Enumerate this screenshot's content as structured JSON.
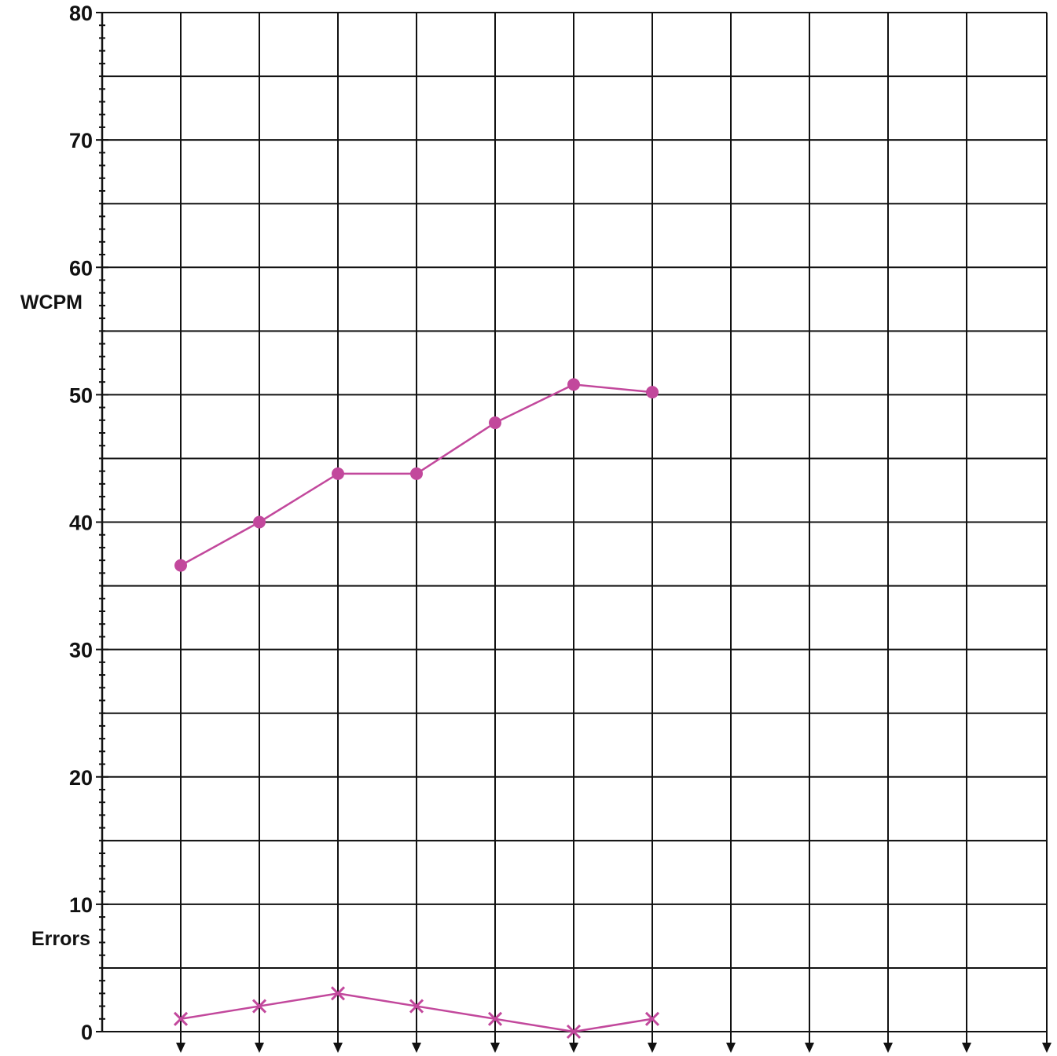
{
  "chart_data": {
    "type": "line",
    "title": "",
    "xlabel": "",
    "ylabel": "WCPM",
    "secondary_label": "Errors",
    "ylim": [
      0,
      80
    ],
    "yticks": [
      "0",
      "10",
      "20",
      "30",
      "40",
      "50",
      "60",
      "70",
      "80"
    ],
    "x_columns": 12,
    "grid": true,
    "series": [
      {
        "name": "WCPM",
        "marker": "circle",
        "x": [
          1,
          2,
          3,
          4,
          5,
          6,
          7
        ],
        "values": [
          36.6,
          40,
          43.8,
          43.8,
          47.8,
          50.8,
          50.2
        ]
      },
      {
        "name": "Errors",
        "marker": "x",
        "x": [
          1,
          2,
          3,
          4,
          5,
          6,
          7
        ],
        "values": [
          1,
          2,
          3,
          2,
          1,
          0,
          1
        ]
      }
    ],
    "colors": {
      "series": "#c2489c",
      "grid": "#111111",
      "text": "#111111"
    }
  }
}
